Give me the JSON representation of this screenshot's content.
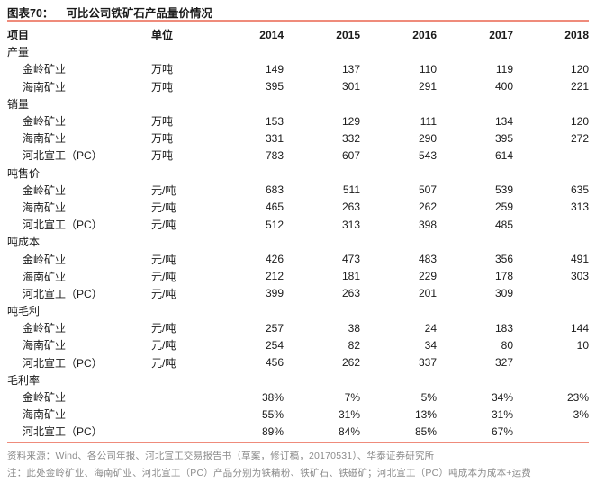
{
  "title": {
    "label": "图表70：",
    "text": "可比公司铁矿石产品量价情况"
  },
  "colors": {
    "accent_line": "#ef8b7b",
    "footer_text": "#8c8c8c",
    "text": "#1a1a1a"
  },
  "table": {
    "columns": [
      "项目",
      "单位",
      "2014",
      "2015",
      "2016",
      "2017",
      "2018"
    ],
    "sections": [
      {
        "name": "产量",
        "rows": [
          {
            "item": "金岭矿业",
            "unit": "万吨",
            "values": [
              "149",
              "137",
              "110",
              "119",
              "120"
            ]
          },
          {
            "item": "海南矿业",
            "unit": "万吨",
            "values": [
              "395",
              "301",
              "291",
              "400",
              "221"
            ]
          }
        ]
      },
      {
        "name": "销量",
        "rows": [
          {
            "item": "金岭矿业",
            "unit": "万吨",
            "values": [
              "153",
              "129",
              "111",
              "134",
              "120"
            ]
          },
          {
            "item": "海南矿业",
            "unit": "万吨",
            "values": [
              "331",
              "332",
              "290",
              "395",
              "272"
            ]
          },
          {
            "item": "河北宣工（PC）",
            "unit": "万吨",
            "values": [
              "783",
              "607",
              "543",
              "614",
              ""
            ]
          }
        ]
      },
      {
        "name": "吨售价",
        "rows": [
          {
            "item": "金岭矿业",
            "unit": "元/吨",
            "values": [
              "683",
              "511",
              "507",
              "539",
              "635"
            ]
          },
          {
            "item": "海南矿业",
            "unit": "元/吨",
            "values": [
              "465",
              "263",
              "262",
              "259",
              "313"
            ]
          },
          {
            "item": "河北宣工（PC）",
            "unit": "元/吨",
            "values": [
              "512",
              "313",
              "398",
              "485",
              ""
            ]
          }
        ]
      },
      {
        "name": "吨成本",
        "rows": [
          {
            "item": "金岭矿业",
            "unit": "元/吨",
            "values": [
              "426",
              "473",
              "483",
              "356",
              "491"
            ]
          },
          {
            "item": "海南矿业",
            "unit": "元/吨",
            "values": [
              "212",
              "181",
              "229",
              "178",
              "303"
            ]
          },
          {
            "item": "河北宣工（PC）",
            "unit": "元/吨",
            "values": [
              "399",
              "263",
              "201",
              "309",
              ""
            ]
          }
        ]
      },
      {
        "name": "吨毛利",
        "rows": [
          {
            "item": "金岭矿业",
            "unit": "元/吨",
            "values": [
              "257",
              "38",
              "24",
              "183",
              "144"
            ]
          },
          {
            "item": "海南矿业",
            "unit": "元/吨",
            "values": [
              "254",
              "82",
              "34",
              "80",
              "10"
            ]
          },
          {
            "item": "河北宣工（PC）",
            "unit": "元/吨",
            "values": [
              "456",
              "262",
              "337",
              "327",
              ""
            ]
          }
        ]
      },
      {
        "name": "毛利率",
        "rows": [
          {
            "item": "金岭矿业",
            "unit": "",
            "values": [
              "38%",
              "7%",
              "5%",
              "34%",
              "23%"
            ]
          },
          {
            "item": "海南矿业",
            "unit": "",
            "values": [
              "55%",
              "31%",
              "13%",
              "31%",
              "3%"
            ]
          },
          {
            "item": "河北宣工（PC）",
            "unit": "",
            "values": [
              "89%",
              "84%",
              "85%",
              "67%",
              ""
            ]
          }
        ]
      }
    ]
  },
  "footer": {
    "source": "资料来源：Wind、各公司年报、河北宣工交易报告书（草案，修订稿，20170531）、华泰证券研究所",
    "note": "注：此处金岭矿业、海南矿业、河北宣工（PC）产品分别为铁精粉、铁矿石、铁磁矿；河北宣工（PC）吨成本为成本+运费"
  }
}
